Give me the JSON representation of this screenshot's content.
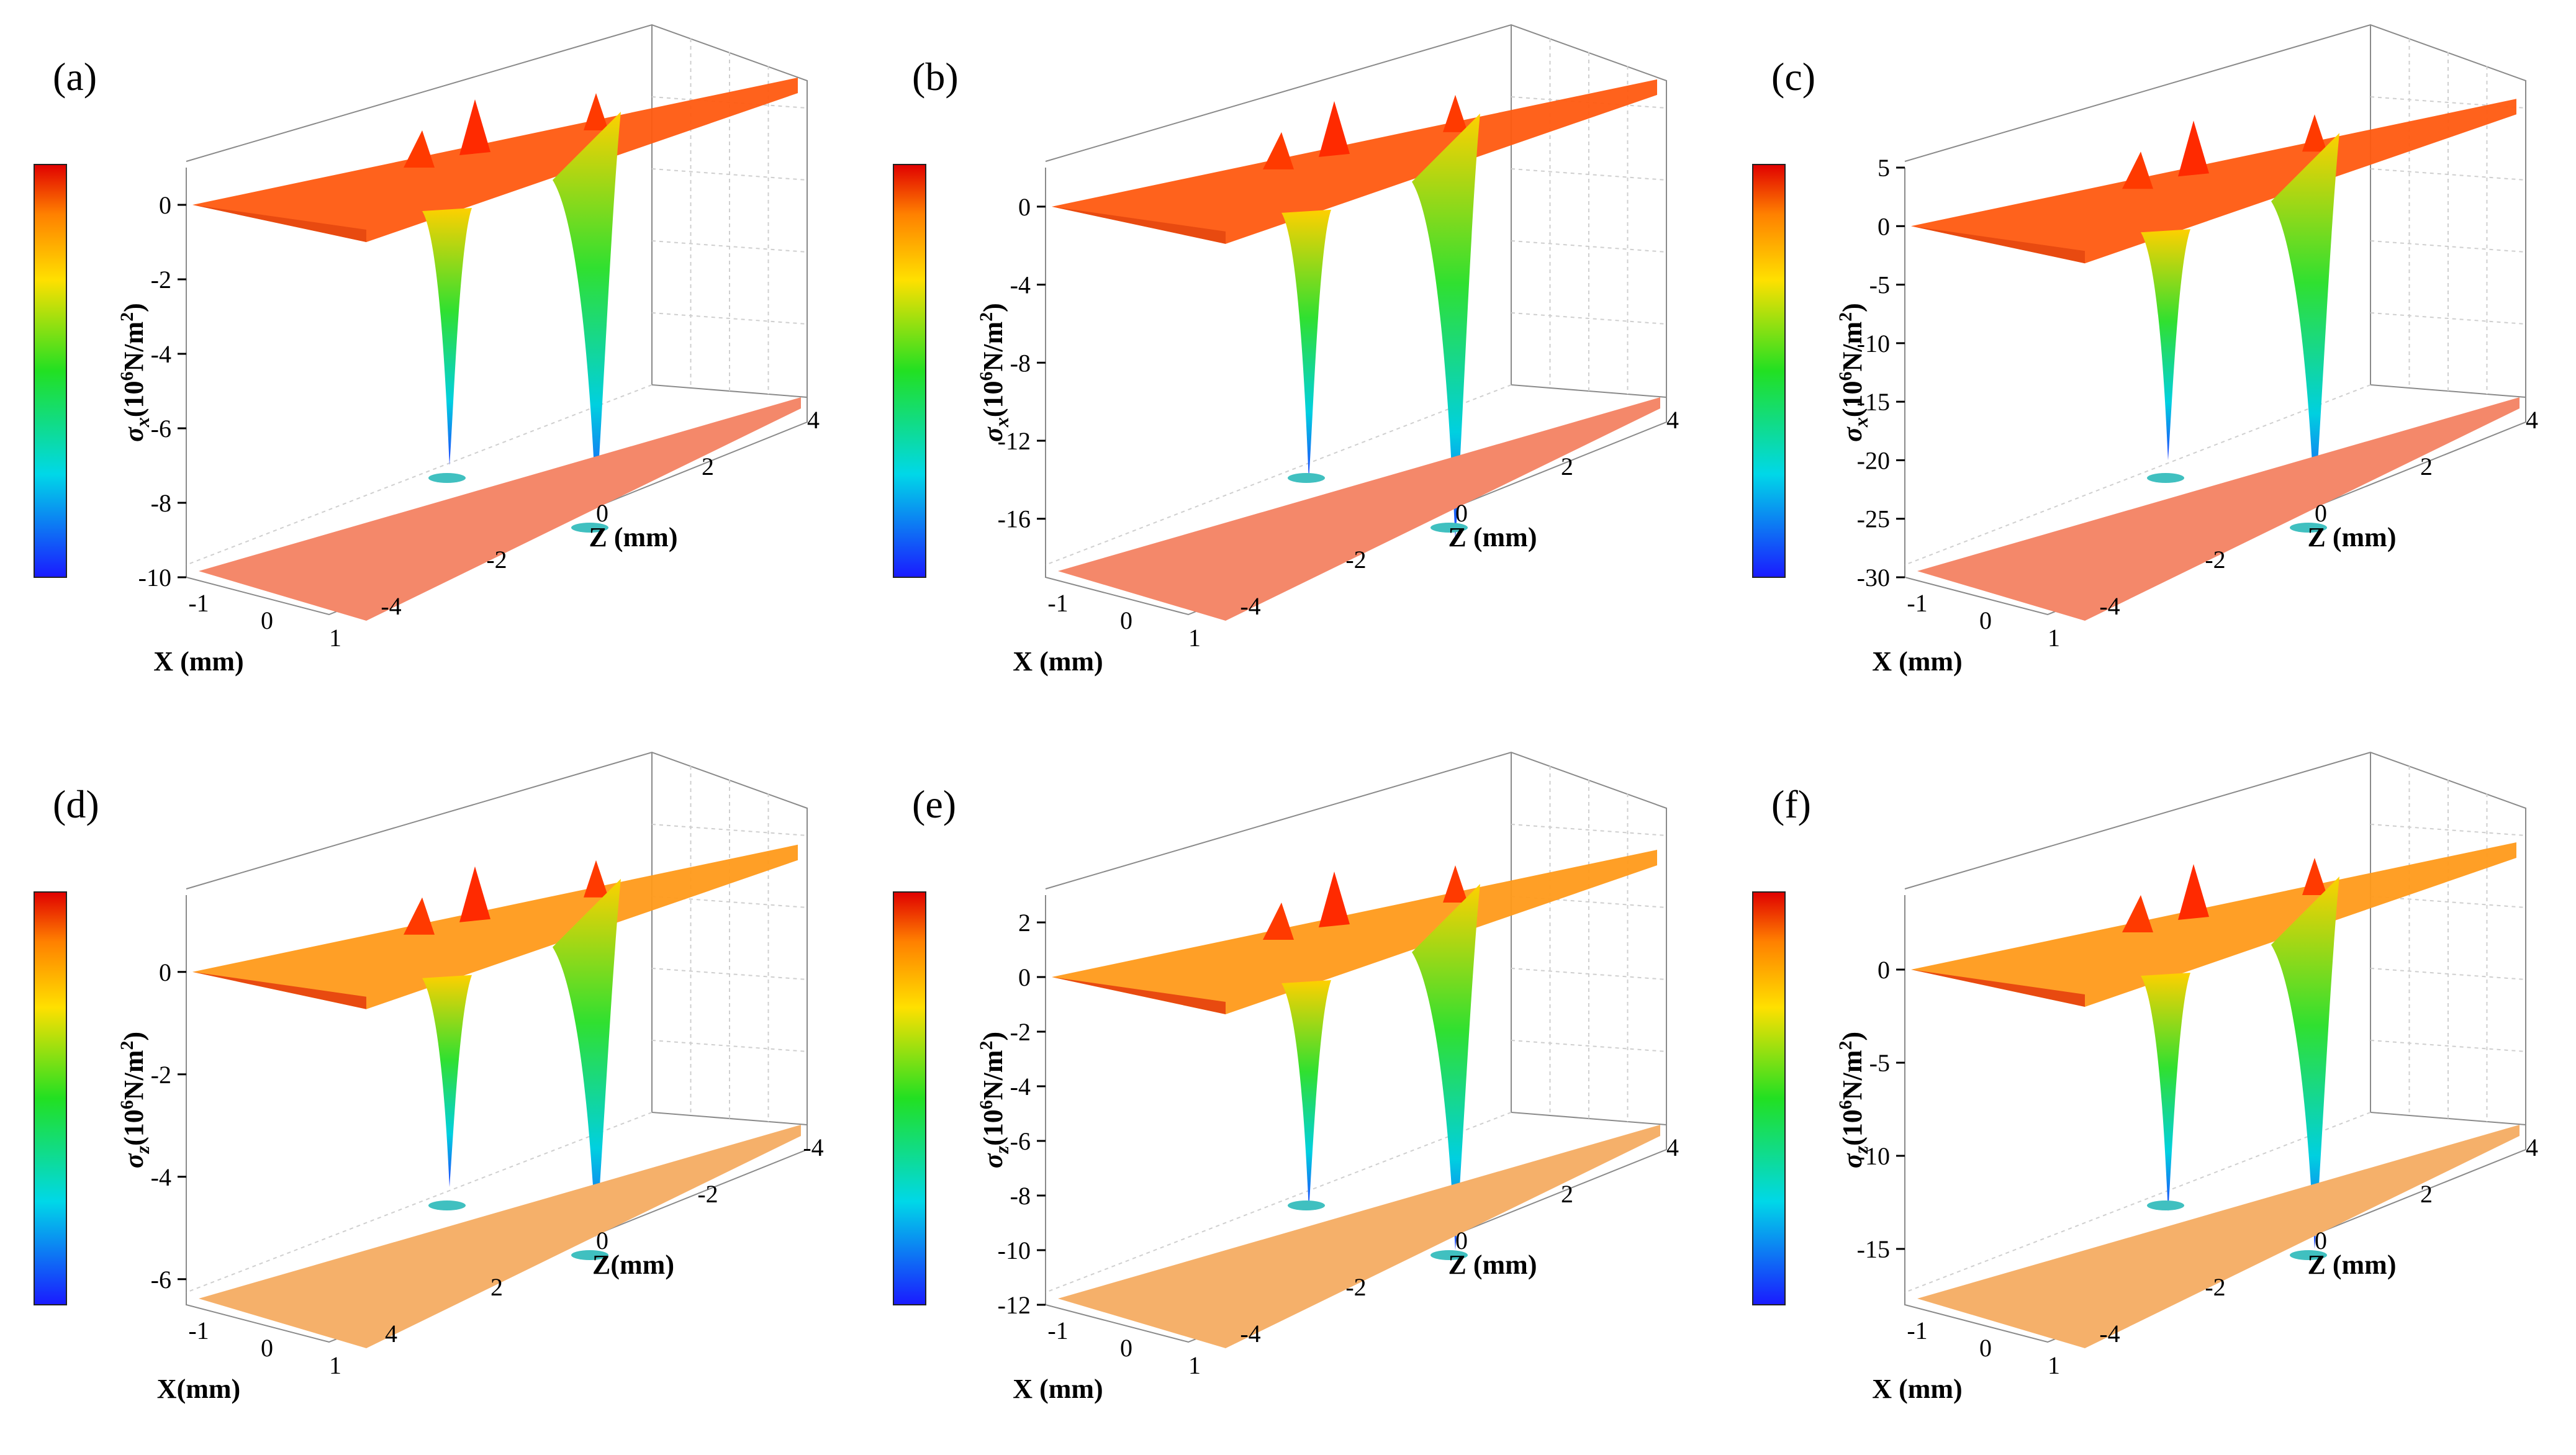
{
  "chart_data": [
    {
      "type": "surface3d",
      "panel": "(a)",
      "quantity": "σx",
      "ylabel_sym": "σ",
      "ylabel_sub": "x",
      "ylabel_unit": "(10",
      "ylabel_exp": "6",
      "ylabel_unit2": "N/m",
      "ylabel_exp2": "2",
      "ylabel_close": ")",
      "z_ticks": [
        "0",
        "-2",
        "-4",
        "-6",
        "-8",
        "-10"
      ],
      "z_range": [
        -10,
        1
      ],
      "x_ticks": [
        "-1",
        "0",
        "1"
      ],
      "x_label": "X (mm)",
      "z_axis_ticks": [
        "-4",
        "-2",
        "0",
        "2",
        "4"
      ],
      "z_axis_label": "Z (mm)",
      "spike_min_left": -7,
      "spike_min_right": -8
    },
    {
      "type": "surface3d",
      "panel": "(b)",
      "quantity": "σx",
      "ylabel_sym": "σ",
      "ylabel_sub": "x",
      "ylabel_unit": "(10",
      "ylabel_exp": "6",
      "ylabel_unit2": "N/m",
      "ylabel_exp2": "2",
      "ylabel_close": ")",
      "z_ticks": [
        "0",
        "-4",
        "-8",
        "-12",
        "-16"
      ],
      "z_range": [
        -19,
        2
      ],
      "x_ticks": [
        "-1",
        "0",
        "1"
      ],
      "x_label": "X (mm)",
      "z_axis_ticks": [
        "-4",
        "-2",
        "0",
        "2",
        "4"
      ],
      "z_axis_label": "Z (mm)",
      "spike_min_left": -14,
      "spike_min_right": -17
    },
    {
      "type": "surface3d",
      "panel": "(c)",
      "quantity": "σx",
      "ylabel_sym": "σ",
      "ylabel_sub": "x",
      "ylabel_unit": "(10",
      "ylabel_exp": "6",
      "ylabel_unit2": "N/m",
      "ylabel_exp2": "2",
      "ylabel_close": ")",
      "z_ticks": [
        "5",
        "0",
        "-5",
        "-10",
        "-15",
        "-20",
        "-25",
        "-30"
      ],
      "z_range": [
        -30,
        5
      ],
      "x_ticks": [
        "-1",
        "0",
        "1"
      ],
      "x_label": "X (mm)",
      "z_axis_ticks": [
        "-4",
        "-2",
        "0",
        "2",
        "4"
      ],
      "z_axis_label": "Z (mm)",
      "spike_min_left": -20,
      "spike_min_right": -24
    },
    {
      "type": "surface3d",
      "panel": "(d)",
      "quantity": "σz",
      "ylabel_sym": "σ",
      "ylabel_sub": "z",
      "ylabel_unit": "(10",
      "ylabel_exp": "6",
      "ylabel_unit2": "N/m",
      "ylabel_exp2": "2",
      "ylabel_close": ")",
      "z_ticks": [
        "0",
        "-2",
        "-4",
        "-6"
      ],
      "z_range": [
        -6.5,
        1.5
      ],
      "x_ticks": [
        "-1",
        "0",
        "1"
      ],
      "x_label": "X(mm)",
      "z_axis_ticks": [
        "4",
        "2",
        "0",
        "-2",
        "-4"
      ],
      "z_axis_label": "Z(mm)",
      "spike_min_left": -4.2,
      "spike_min_right": -5.2
    },
    {
      "type": "surface3d",
      "panel": "(e)",
      "quantity": "σz",
      "ylabel_sym": "σ",
      "ylabel_sub": "z",
      "ylabel_unit": "(10",
      "ylabel_exp": "6",
      "ylabel_unit2": "N/m",
      "ylabel_exp2": "2",
      "ylabel_close": ")",
      "z_ticks": [
        "2",
        "0",
        "-2",
        "-4",
        "-6",
        "-8",
        "-10",
        "-12"
      ],
      "z_range": [
        -12,
        3
      ],
      "x_ticks": [
        "-1",
        "0",
        "1"
      ],
      "x_label": "X (mm)",
      "z_axis_ticks": [
        "-4",
        "-2",
        "0",
        "2",
        "4"
      ],
      "z_axis_label": "Z (mm)",
      "spike_min_left": -8.5,
      "spike_min_right": -10
    },
    {
      "type": "surface3d",
      "panel": "(f)",
      "quantity": "σz",
      "ylabel_sym": "σ",
      "ylabel_sub": "z",
      "ylabel_unit": "(10",
      "ylabel_exp": "6",
      "ylabel_unit2": "N/m",
      "ylabel_exp2": "2",
      "ylabel_close": ")",
      "z_ticks": [
        "0",
        "-5",
        "-10",
        "-15"
      ],
      "z_range": [
        -18,
        4
      ],
      "x_ticks": [
        "-1",
        "0",
        "1"
      ],
      "x_label": "X (mm)",
      "z_axis_ticks": [
        "-4",
        "-2",
        "0",
        "2",
        "4"
      ],
      "z_axis_label": "Z (mm)",
      "spike_min_left": -13,
      "spike_min_right": -15
    }
  ]
}
